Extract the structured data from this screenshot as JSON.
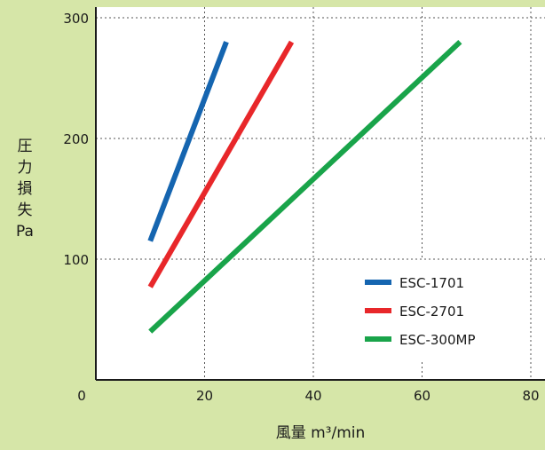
{
  "chart_data": {
    "type": "line",
    "title": "",
    "xlabel": "風量 m³/min",
    "ylabel_lines": [
      "圧",
      "力",
      "損",
      "失",
      "Pa"
    ],
    "xlim": [
      0,
      80
    ],
    "ylim": [
      0,
      300
    ],
    "x_ticks": [
      20,
      40,
      60,
      80
    ],
    "y_ticks": [
      100,
      200,
      300
    ],
    "origin_label": "0",
    "grid": true,
    "legend_position": "bottom-right",
    "series": [
      {
        "name": "ESC-1701",
        "color": "#1565b0",
        "points": [
          [
            10,
            115
          ],
          [
            24,
            280
          ]
        ]
      },
      {
        "name": "ESC-2701",
        "color": "#e8272a",
        "points": [
          [
            10,
            77
          ],
          [
            36,
            280
          ]
        ]
      },
      {
        "name": "ESC-300MP",
        "color": "#19a44a",
        "points": [
          [
            10,
            40
          ],
          [
            67,
            280
          ]
        ]
      }
    ]
  }
}
